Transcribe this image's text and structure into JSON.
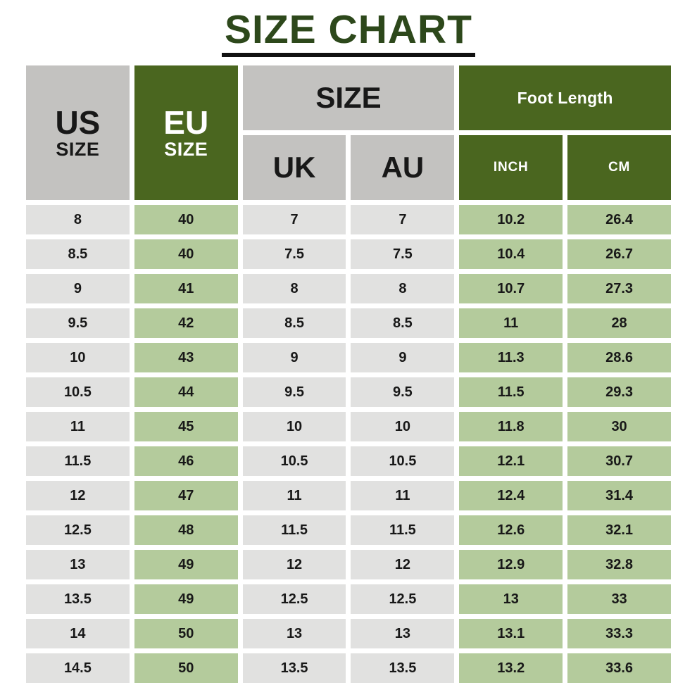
{
  "title": "SIZE CHART",
  "colors": {
    "title-green": "#2d481b",
    "dark-green": "#4a661f",
    "header-gray": "#c3c2c0",
    "cell-gray": "#e1e1e0",
    "cell-green": "#b4cb9c",
    "text-dark": "#181818",
    "text-light": "#ffffff",
    "underline": "#111111",
    "bg": "#ffffff"
  },
  "header": {
    "us_top": "US",
    "us_sub": "SIZE",
    "eu_top": "EU",
    "eu_sub": "SIZE",
    "size_group": "SIZE",
    "uk": "UK",
    "au": "AU",
    "foot_length_group": "Foot Length",
    "inch": "INCH",
    "cm": "CM"
  },
  "chart_data": {
    "type": "table",
    "title": "SIZE CHART",
    "column_groups": [
      {
        "label": "SIZE",
        "children": [
          "UK",
          "AU"
        ]
      },
      {
        "label": "Foot Length",
        "children": [
          "INCH",
          "CM"
        ]
      }
    ],
    "columns": [
      "US SIZE",
      "EU SIZE",
      "UK",
      "AU",
      "INCH",
      "CM"
    ],
    "column_styles": [
      "gray",
      "green",
      "gray",
      "gray",
      "green",
      "green"
    ],
    "rows": [
      [
        "8",
        "40",
        "7",
        "7",
        "10.2",
        "26.4"
      ],
      [
        "8.5",
        "40",
        "7.5",
        "7.5",
        "10.4",
        "26.7"
      ],
      [
        "9",
        "41",
        "8",
        "8",
        "10.7",
        "27.3"
      ],
      [
        "9.5",
        "42",
        "8.5",
        "8.5",
        "11",
        "28"
      ],
      [
        "10",
        "43",
        "9",
        "9",
        "11.3",
        "28.6"
      ],
      [
        "10.5",
        "44",
        "9.5",
        "9.5",
        "11.5",
        "29.3"
      ],
      [
        "11",
        "45",
        "10",
        "10",
        "11.8",
        "30"
      ],
      [
        "11.5",
        "46",
        "10.5",
        "10.5",
        "12.1",
        "30.7"
      ],
      [
        "12",
        "47",
        "11",
        "11",
        "12.4",
        "31.4"
      ],
      [
        "12.5",
        "48",
        "11.5",
        "11.5",
        "12.6",
        "32.1"
      ],
      [
        "13",
        "49",
        "12",
        "12",
        "12.9",
        "32.8"
      ],
      [
        "13.5",
        "49",
        "12.5",
        "12.5",
        "13",
        "33"
      ],
      [
        "14",
        "50",
        "13",
        "13",
        "13.1",
        "33.3"
      ],
      [
        "14.5",
        "50",
        "13.5",
        "13.5",
        "13.2",
        "33.6"
      ]
    ]
  }
}
